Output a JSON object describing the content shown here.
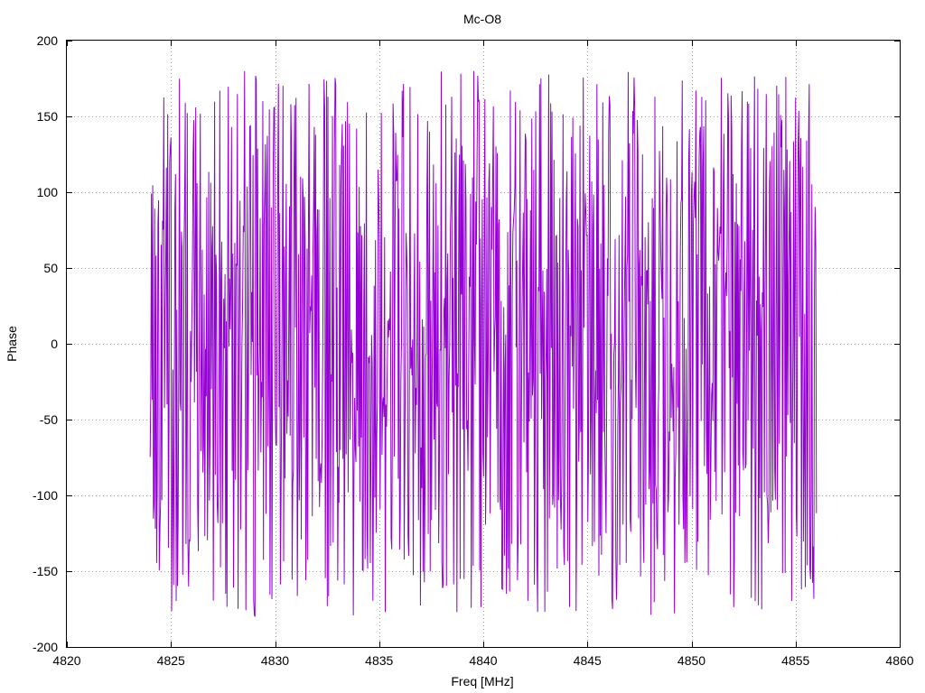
{
  "chart_data": {
    "type": "line",
    "title": "Mc-O8",
    "xlabel": "Freq [MHz]",
    "ylabel": "Phase",
    "xlim": [
      4820,
      4860
    ],
    "ylim": [
      -200,
      200
    ],
    "xticks": [
      4820,
      4825,
      4830,
      4835,
      4840,
      4845,
      4850,
      4855,
      4860
    ],
    "yticks": [
      -200,
      -150,
      -100,
      -50,
      0,
      50,
      100,
      150,
      200
    ],
    "grid": true,
    "legend": "none",
    "series": [
      {
        "color": "#9400d3",
        "x_start": 4824.0,
        "x_end": 4856.0,
        "points": 1024,
        "value_range": [
          -180,
          180
        ],
        "description": "wrapped phase, rapidly oscillating noise-like signal spanning -180 to 180 across the band"
      }
    ]
  }
}
